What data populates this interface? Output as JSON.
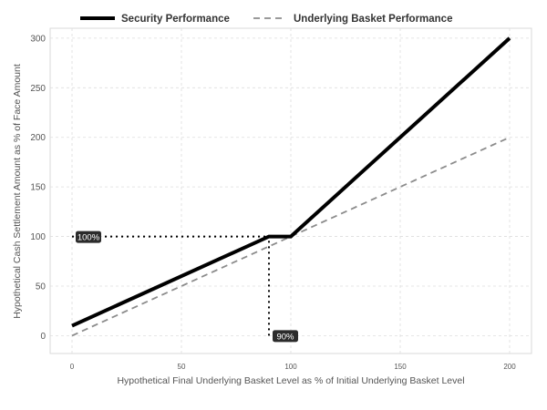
{
  "chart_data": {
    "type": "line",
    "xlabel": "Hypothetical Final Underlying Basket Level as % of Initial Underlying Basket Level",
    "ylabel": "Hypothetical Cash Settlement Amount as % of Face Amount",
    "xlim": [
      -10,
      210
    ],
    "ylim": [
      -18,
      310
    ],
    "x_ticks": [
      0,
      50,
      100,
      150,
      200
    ],
    "y_ticks": [
      0,
      50,
      100,
      150,
      200,
      250,
      300
    ],
    "grid": true,
    "legend_position": "top",
    "series": [
      {
        "name": "Security Performance",
        "style": "solid",
        "color": "#000000",
        "points": [
          [
            0,
            10
          ],
          [
            90,
            100
          ],
          [
            100,
            100
          ],
          [
            200,
            300
          ]
        ]
      },
      {
        "name": "Underlying Basket Performance",
        "style": "dashed",
        "color": "#8c8c8c",
        "points": [
          [
            0,
            0
          ],
          [
            200,
            200
          ]
        ]
      }
    ],
    "annotations": [
      {
        "label": "100%",
        "x": 0,
        "y": 100
      },
      {
        "label": "90%",
        "x": 90,
        "y": 0
      }
    ],
    "reference_lines": [
      {
        "from": [
          0,
          100
        ],
        "to": [
          100,
          100
        ],
        "style": "dotted"
      },
      {
        "from": [
          90,
          0
        ],
        "to": [
          90,
          100
        ],
        "style": "dotted"
      }
    ]
  }
}
